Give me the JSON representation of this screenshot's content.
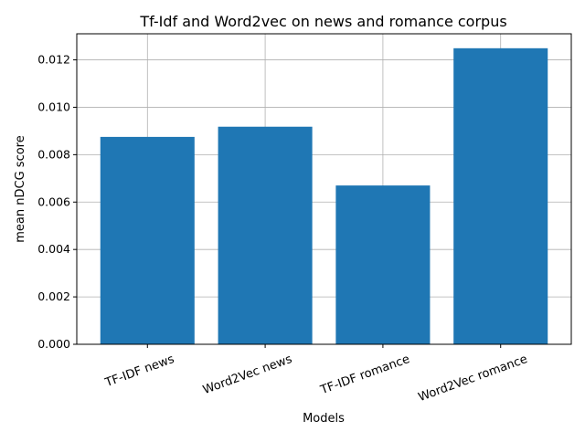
{
  "chart_data": {
    "type": "bar",
    "title": "Tf-Idf and Word2vec on news and romance corpus",
    "xlabel": "Models",
    "ylabel": "mean nDCG score",
    "categories": [
      "TF-IDF news",
      "Word2Vec news",
      "TF-IDF romance",
      "Word2Vec romance"
    ],
    "values": [
      0.00875,
      0.00918,
      0.0067,
      0.01249
    ],
    "ylim": [
      0,
      0.0131
    ],
    "yticks": [
      "0.000",
      "0.002",
      "0.004",
      "0.006",
      "0.008",
      "0.010",
      "0.012"
    ],
    "ytick_values": [
      0,
      0.002,
      0.004,
      0.006,
      0.008,
      0.01,
      0.012
    ],
    "grid": true,
    "bar_color": "#1f77b4",
    "grid_color": "#b0b0b0"
  }
}
